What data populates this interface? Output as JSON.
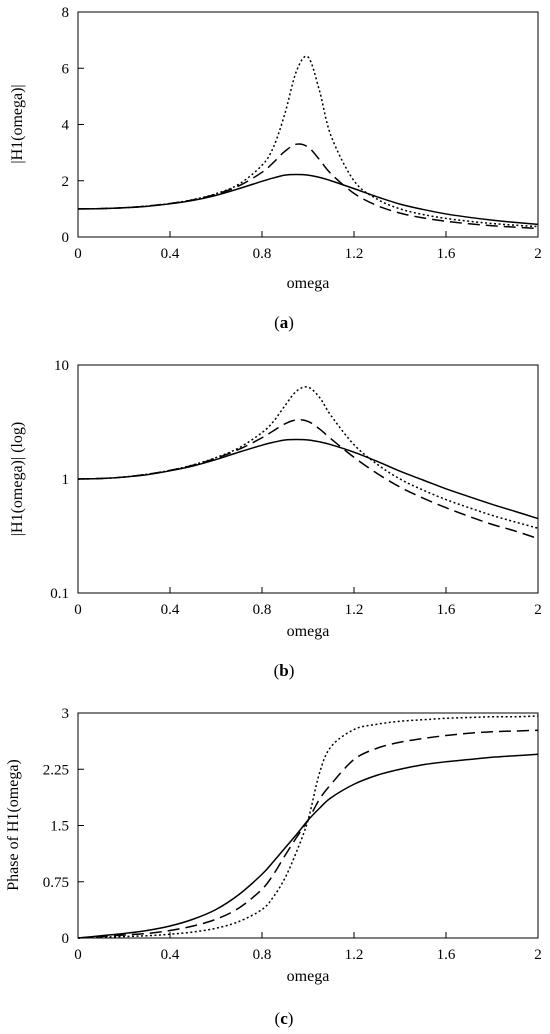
{
  "chart_data": [
    {
      "type": "line",
      "panel_label": "a",
      "xlabel": "omega",
      "ylabel": "|H1(omega)|",
      "xlim": [
        0,
        2
      ],
      "ylim": [
        0,
        8
      ],
      "yscale": "linear",
      "grid": false,
      "xticks": [
        "0",
        "0.4",
        "0.8",
        "1.2",
        "1.6",
        "2"
      ],
      "xtick_values": [
        0,
        0.4,
        0.8,
        1.2,
        1.6,
        2
      ],
      "yticks": [
        "0",
        "2",
        "4",
        "6",
        "8"
      ],
      "ytick_values": [
        0,
        2,
        4,
        6,
        8
      ],
      "x": [
        0,
        0.1,
        0.2,
        0.3,
        0.4,
        0.5,
        0.6,
        0.7,
        0.8,
        0.85,
        0.9,
        0.95,
        1.0,
        1.05,
        1.1,
        1.2,
        1.3,
        1.4,
        1.5,
        1.6,
        1.7,
        1.8,
        1.9,
        2.0
      ],
      "series": [
        {
          "style": "solid",
          "values": [
            1.0,
            1.01,
            1.04,
            1.09,
            1.18,
            1.3,
            1.48,
            1.72,
            1.98,
            2.1,
            2.2,
            2.22,
            2.2,
            2.12,
            2.0,
            1.72,
            1.43,
            1.17,
            0.98,
            0.82,
            0.7,
            0.6,
            0.52,
            0.45
          ]
        },
        {
          "style": "dashed",
          "values": [
            1.0,
            1.01,
            1.04,
            1.1,
            1.19,
            1.32,
            1.52,
            1.82,
            2.3,
            2.65,
            3.05,
            3.3,
            3.2,
            2.75,
            2.25,
            1.55,
            1.12,
            0.85,
            0.68,
            0.56,
            0.47,
            0.4,
            0.35,
            0.3
          ]
        },
        {
          "style": "dotted",
          "values": [
            1.0,
            1.01,
            1.04,
            1.1,
            1.19,
            1.33,
            1.54,
            1.88,
            2.55,
            3.2,
            4.4,
            5.9,
            6.4,
            5.2,
            3.6,
            2.0,
            1.35,
            1.0,
            0.8,
            0.66,
            0.56,
            0.48,
            0.42,
            0.37
          ]
        }
      ]
    },
    {
      "type": "line",
      "panel_label": "b",
      "xlabel": "omega",
      "ylabel": "|H1(omega)| (log)",
      "xlim": [
        0,
        2
      ],
      "ylim": [
        0.1,
        10
      ],
      "yscale": "log",
      "grid": false,
      "xticks": [
        "0",
        "0.4",
        "0.8",
        "1.2",
        "1.6",
        "2"
      ],
      "xtick_values": [
        0,
        0.4,
        0.8,
        1.2,
        1.6,
        2
      ],
      "yticks": [
        "0.1",
        "1",
        "10"
      ],
      "ytick_values": [
        0.1,
        1,
        10
      ],
      "x": [
        0,
        0.1,
        0.2,
        0.3,
        0.4,
        0.5,
        0.6,
        0.7,
        0.8,
        0.85,
        0.9,
        0.95,
        1.0,
        1.05,
        1.1,
        1.2,
        1.3,
        1.4,
        1.5,
        1.6,
        1.7,
        1.8,
        1.9,
        2.0
      ],
      "series": [
        {
          "style": "solid",
          "values": [
            1.0,
            1.01,
            1.04,
            1.09,
            1.18,
            1.3,
            1.48,
            1.72,
            1.98,
            2.1,
            2.2,
            2.22,
            2.2,
            2.12,
            2.0,
            1.72,
            1.43,
            1.17,
            0.98,
            0.82,
            0.7,
            0.6,
            0.52,
            0.45
          ]
        },
        {
          "style": "dashed",
          "values": [
            1.0,
            1.01,
            1.04,
            1.1,
            1.19,
            1.32,
            1.52,
            1.82,
            2.3,
            2.65,
            3.05,
            3.3,
            3.2,
            2.75,
            2.25,
            1.55,
            1.12,
            0.85,
            0.68,
            0.56,
            0.47,
            0.4,
            0.35,
            0.3
          ]
        },
        {
          "style": "dotted",
          "values": [
            1.0,
            1.01,
            1.04,
            1.1,
            1.19,
            1.33,
            1.54,
            1.88,
            2.55,
            3.2,
            4.4,
            5.9,
            6.4,
            5.2,
            3.6,
            2.0,
            1.35,
            1.0,
            0.8,
            0.66,
            0.56,
            0.48,
            0.42,
            0.37
          ]
        }
      ]
    },
    {
      "type": "line",
      "panel_label": "c",
      "xlabel": "omega",
      "ylabel": "Phase of H1(omega)",
      "xlim": [
        0,
        2
      ],
      "ylim": [
        0,
        3
      ],
      "yscale": "linear",
      "grid": false,
      "xticks": [
        "0",
        "0.4",
        "0.8",
        "1.2",
        "1.6",
        "2"
      ],
      "xtick_values": [
        0,
        0.4,
        0.8,
        1.2,
        1.6,
        2
      ],
      "yticks": [
        "0",
        "0.75",
        "1.5",
        "2.25",
        "3"
      ],
      "ytick_values": [
        0,
        0.75,
        1.5,
        2.25,
        3
      ],
      "x": [
        0,
        0.1,
        0.2,
        0.3,
        0.4,
        0.5,
        0.6,
        0.7,
        0.8,
        0.85,
        0.9,
        0.95,
        1.0,
        1.05,
        1.1,
        1.2,
        1.3,
        1.4,
        1.5,
        1.6,
        1.7,
        1.8,
        1.9,
        2.0
      ],
      "series": [
        {
          "style": "solid",
          "values": [
            0,
            0.03,
            0.06,
            0.1,
            0.16,
            0.25,
            0.38,
            0.58,
            0.85,
            1.02,
            1.2,
            1.38,
            1.57,
            1.73,
            1.87,
            2.05,
            2.17,
            2.25,
            2.31,
            2.35,
            2.38,
            2.41,
            2.43,
            2.45
          ]
        },
        {
          "style": "dashed",
          "values": [
            0,
            0.02,
            0.04,
            0.06,
            0.1,
            0.16,
            0.25,
            0.4,
            0.65,
            0.85,
            1.1,
            1.34,
            1.57,
            1.85,
            2.05,
            2.38,
            2.53,
            2.61,
            2.66,
            2.7,
            2.73,
            2.75,
            2.76,
            2.77
          ]
        },
        {
          "style": "dotted",
          "values": [
            0,
            0.01,
            0.02,
            0.03,
            0.05,
            0.08,
            0.13,
            0.22,
            0.38,
            0.55,
            0.8,
            1.15,
            1.57,
            2.2,
            2.55,
            2.78,
            2.85,
            2.89,
            2.91,
            2.93,
            2.94,
            2.95,
            2.95,
            2.96
          ]
        }
      ]
    }
  ]
}
